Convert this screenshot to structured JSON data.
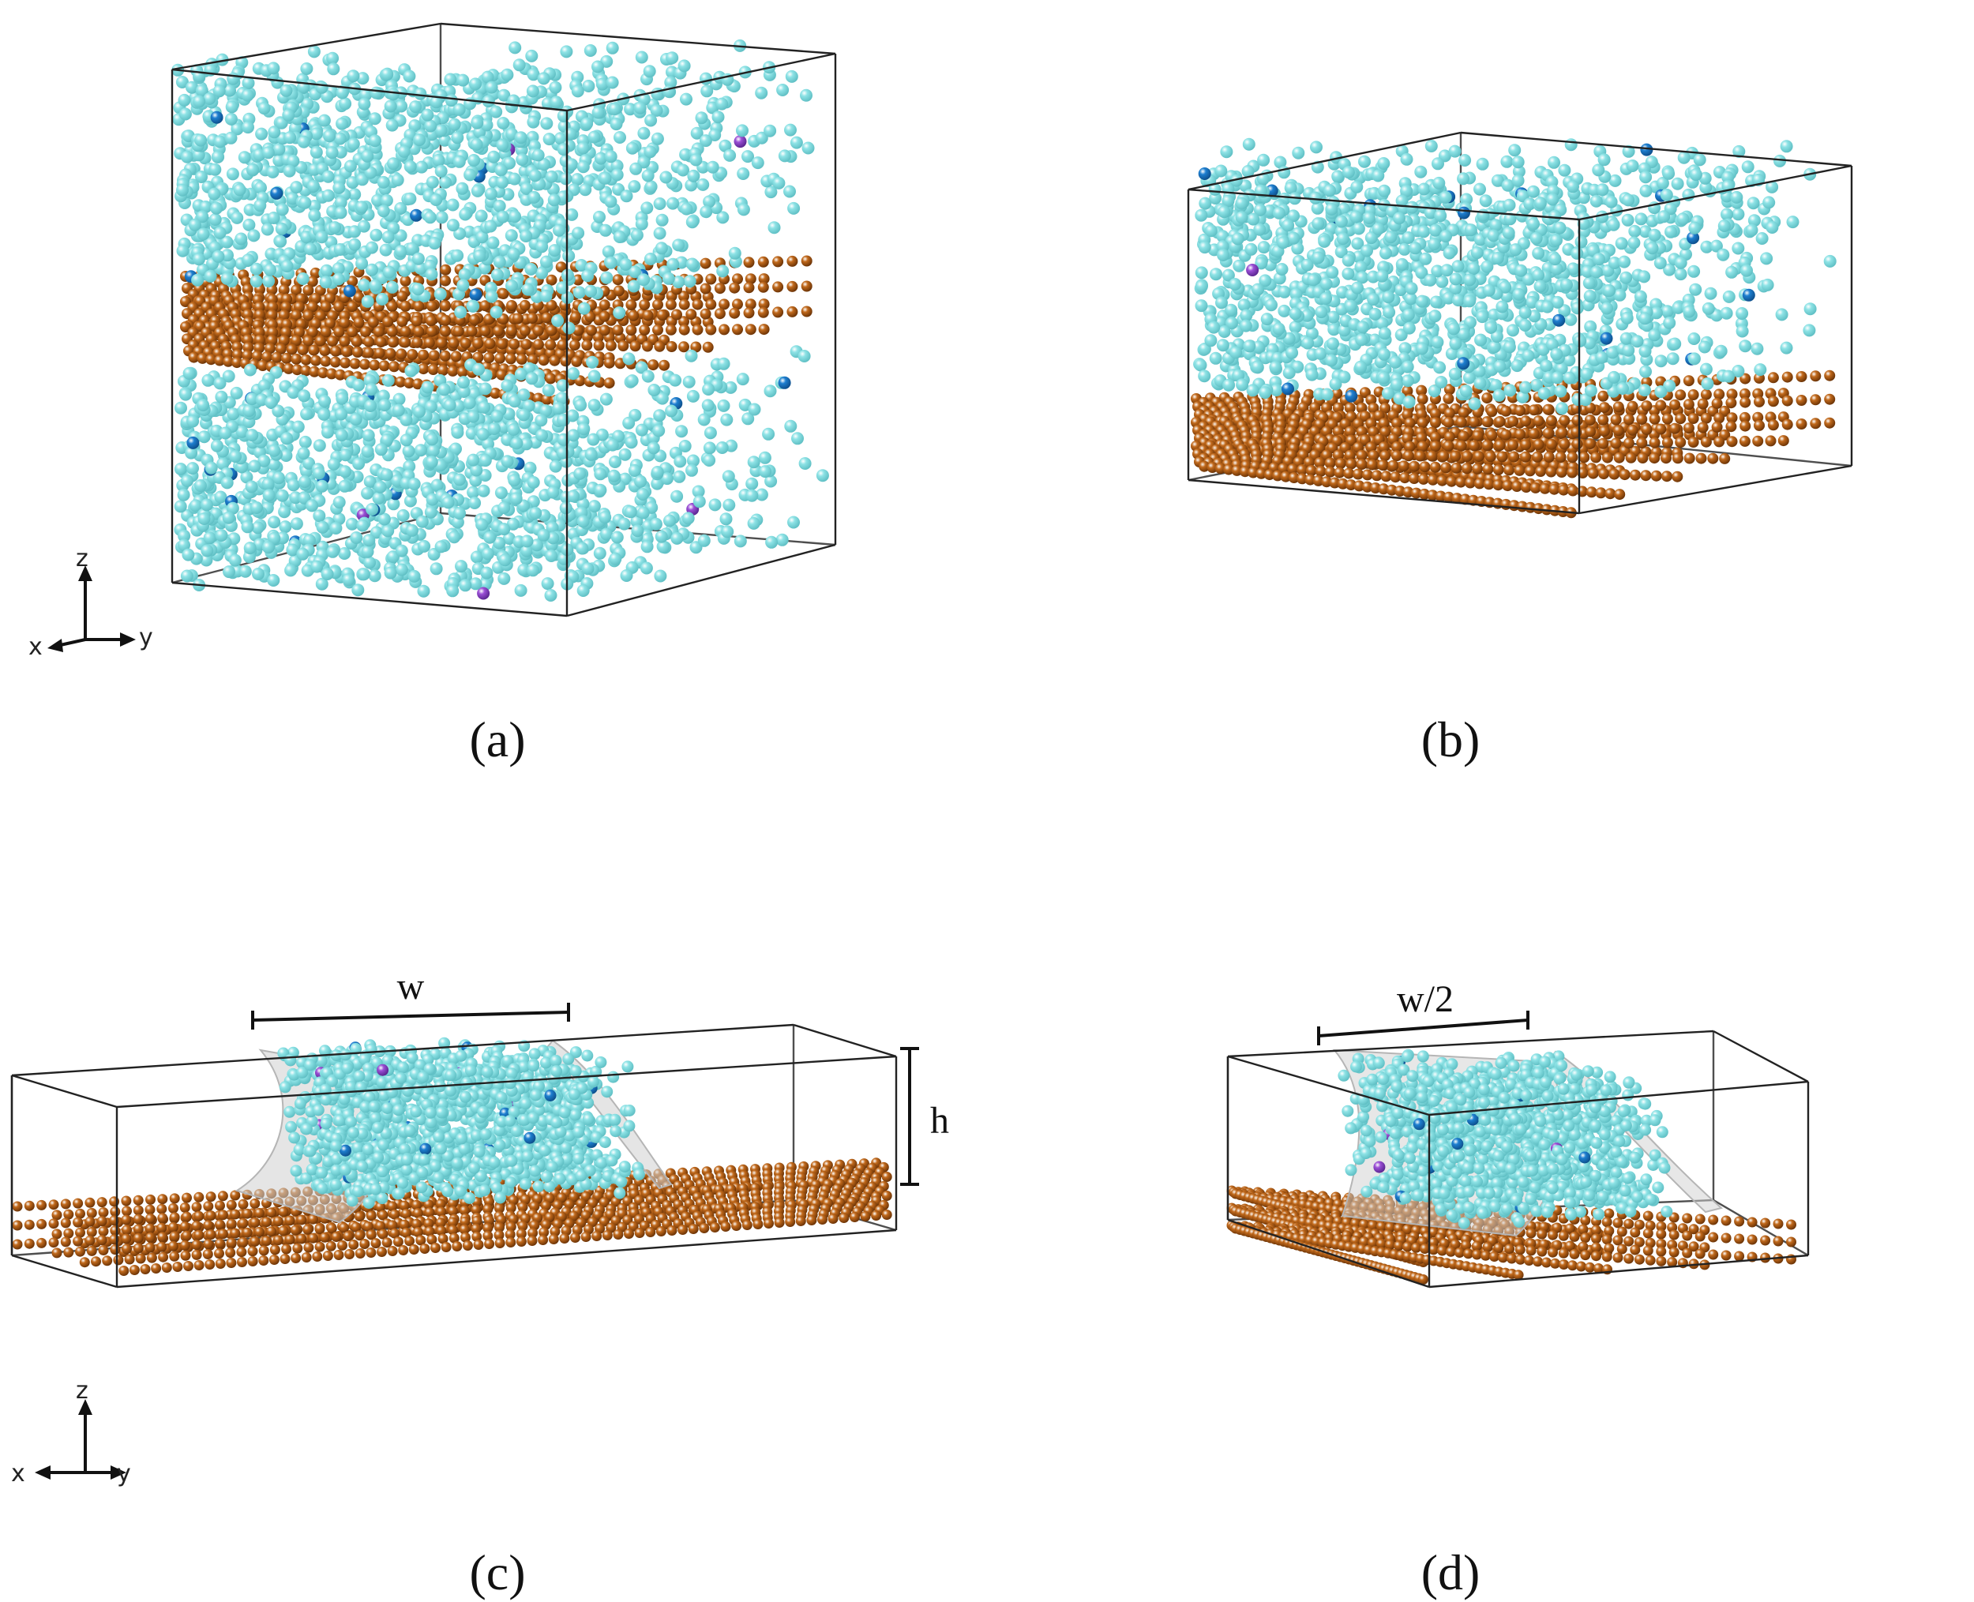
{
  "panels": [
    {
      "id": "a",
      "label": "(a)"
    },
    {
      "id": "b",
      "label": "(b)"
    },
    {
      "id": "c",
      "label": "(c)",
      "dimensions": {
        "width": "w",
        "height": "h"
      }
    },
    {
      "id": "d",
      "label": "(d)",
      "dimensions": {
        "width": "w/2"
      }
    }
  ],
  "axes_triad": {
    "x": "x",
    "y": "y",
    "z": "z"
  },
  "colors": {
    "solvent": "#8ee3e6",
    "solvent_edge": "#5fbfc4",
    "solute": "#1e7fd0",
    "impurity": "#9b4fd6",
    "sheet": "#a4520e",
    "sheet_edge": "#6b3306",
    "surface": "#cfcfcf",
    "box": "#222222"
  }
}
